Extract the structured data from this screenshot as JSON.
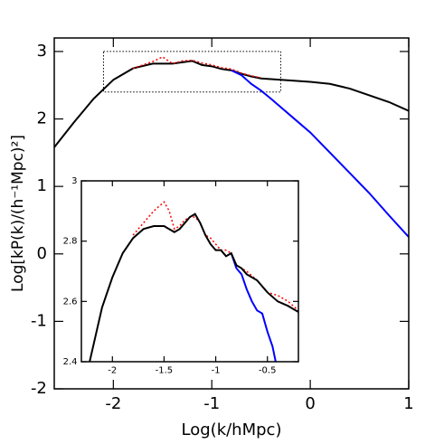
{
  "chart_data": [
    {
      "type": "line",
      "xlabel": "Log(k/hMpc)",
      "ylabel": "Log[kP(k)/(h⁻¹Mpc)²]",
      "xlim": [
        -2.6,
        1
      ],
      "ylim": [
        -2,
        3.2
      ],
      "xticks": [
        -2,
        -1,
        0,
        1
      ],
      "yticks": [
        -2,
        -1,
        0,
        1,
        2,
        3
      ],
      "zoom_box": {
        "xlim": [
          -2.1,
          -0.3
        ],
        "ylim": [
          2.4,
          3.0
        ]
      },
      "series": [
        {
          "color": "#000000",
          "style": "solid",
          "x": [
            -2.6,
            -2.4,
            -2.2,
            -2.0,
            -1.8,
            -1.6,
            -1.5,
            -1.4,
            -1.3,
            -1.2,
            -1.1,
            -1.0,
            -0.9,
            -0.8,
            -0.7,
            -0.6,
            -0.5,
            -0.4,
            -0.2,
            0,
            0.2,
            0.4,
            0.6,
            0.8,
            1.0
          ],
          "values": [
            1.58,
            1.95,
            2.3,
            2.58,
            2.75,
            2.82,
            2.82,
            2.82,
            2.84,
            2.86,
            2.8,
            2.78,
            2.74,
            2.72,
            2.67,
            2.63,
            2.6,
            2.59,
            2.57,
            2.55,
            2.52,
            2.45,
            2.35,
            2.25,
            2.12
          ]
        },
        {
          "color": "#0000ff",
          "style": "solid",
          "x": [
            -0.8,
            -0.7,
            -0.6,
            -0.5,
            -0.4,
            -0.2,
            0,
            0.2,
            0.4,
            0.6,
            0.8,
            1.0
          ],
          "values": [
            2.72,
            2.65,
            2.52,
            2.42,
            2.3,
            2.05,
            1.8,
            1.5,
            1.2,
            0.9,
            0.57,
            0.25
          ]
        },
        {
          "color": "#ff0000",
          "style": "dotted",
          "x": [
            -1.8,
            -1.6,
            -1.5,
            -1.4,
            -1.3,
            -1.2,
            -1.1,
            -1.0,
            -0.9,
            -0.8,
            -0.7,
            -0.6,
            -0.5
          ],
          "values": [
            2.75,
            2.85,
            2.92,
            2.82,
            2.86,
            2.87,
            2.83,
            2.8,
            2.76,
            2.74,
            2.68,
            2.64,
            2.61
          ]
        }
      ]
    },
    {
      "type": "line",
      "xlim": [
        -2.3,
        -0.2
      ],
      "ylim": [
        2.4,
        3.0
      ],
      "xticks": [
        -2,
        -1.5,
        -1,
        -0.5
      ],
      "yticks": [
        2.4,
        2.6,
        2.8,
        3
      ],
      "series": [
        {
          "color": "#ff0000",
          "style": "dotted",
          "x": [
            -1.8,
            -1.7,
            -1.6,
            -1.5,
            -1.45,
            -1.4,
            -1.35,
            -1.3,
            -1.25,
            -1.2,
            -1.15,
            -1.1,
            -1.05,
            -1.0,
            -0.95,
            -0.9,
            -0.85,
            -0.8,
            -0.7,
            -0.6,
            -0.5,
            -0.4,
            -0.3,
            -0.2
          ],
          "values": [
            2.82,
            2.86,
            2.9,
            2.93,
            2.9,
            2.84,
            2.85,
            2.87,
            2.88,
            2.88,
            2.86,
            2.82,
            2.81,
            2.79,
            2.77,
            2.77,
            2.76,
            2.72,
            2.7,
            2.67,
            2.63,
            2.62,
            2.6,
            2.57
          ]
        },
        {
          "color": "#0000ff",
          "style": "solid",
          "x": [
            -0.85,
            -0.8,
            -0.75,
            -0.7,
            -0.65,
            -0.6,
            -0.55,
            -0.5,
            -0.45,
            -0.42
          ],
          "values": [
            2.76,
            2.71,
            2.69,
            2.64,
            2.6,
            2.57,
            2.56,
            2.5,
            2.45,
            2.4
          ]
        },
        {
          "color": "#000000",
          "style": "solid",
          "x": [
            -2.22,
            -2.1,
            -2.0,
            -1.9,
            -1.8,
            -1.7,
            -1.6,
            -1.5,
            -1.45,
            -1.4,
            -1.35,
            -1.3,
            -1.25,
            -1.2,
            -1.15,
            -1.1,
            -1.05,
            -1.0,
            -0.95,
            -0.9,
            -0.85,
            -0.8,
            -0.75,
            -0.7,
            -0.65,
            -0.6,
            -0.5,
            -0.4,
            -0.3,
            -0.2
          ],
          "values": [
            2.4,
            2.58,
            2.68,
            2.76,
            2.81,
            2.84,
            2.85,
            2.85,
            2.84,
            2.83,
            2.84,
            2.86,
            2.88,
            2.89,
            2.86,
            2.82,
            2.79,
            2.77,
            2.77,
            2.75,
            2.76,
            2.72,
            2.71,
            2.69,
            2.68,
            2.67,
            2.63,
            2.6,
            2.585,
            2.565
          ]
        }
      ]
    }
  ]
}
